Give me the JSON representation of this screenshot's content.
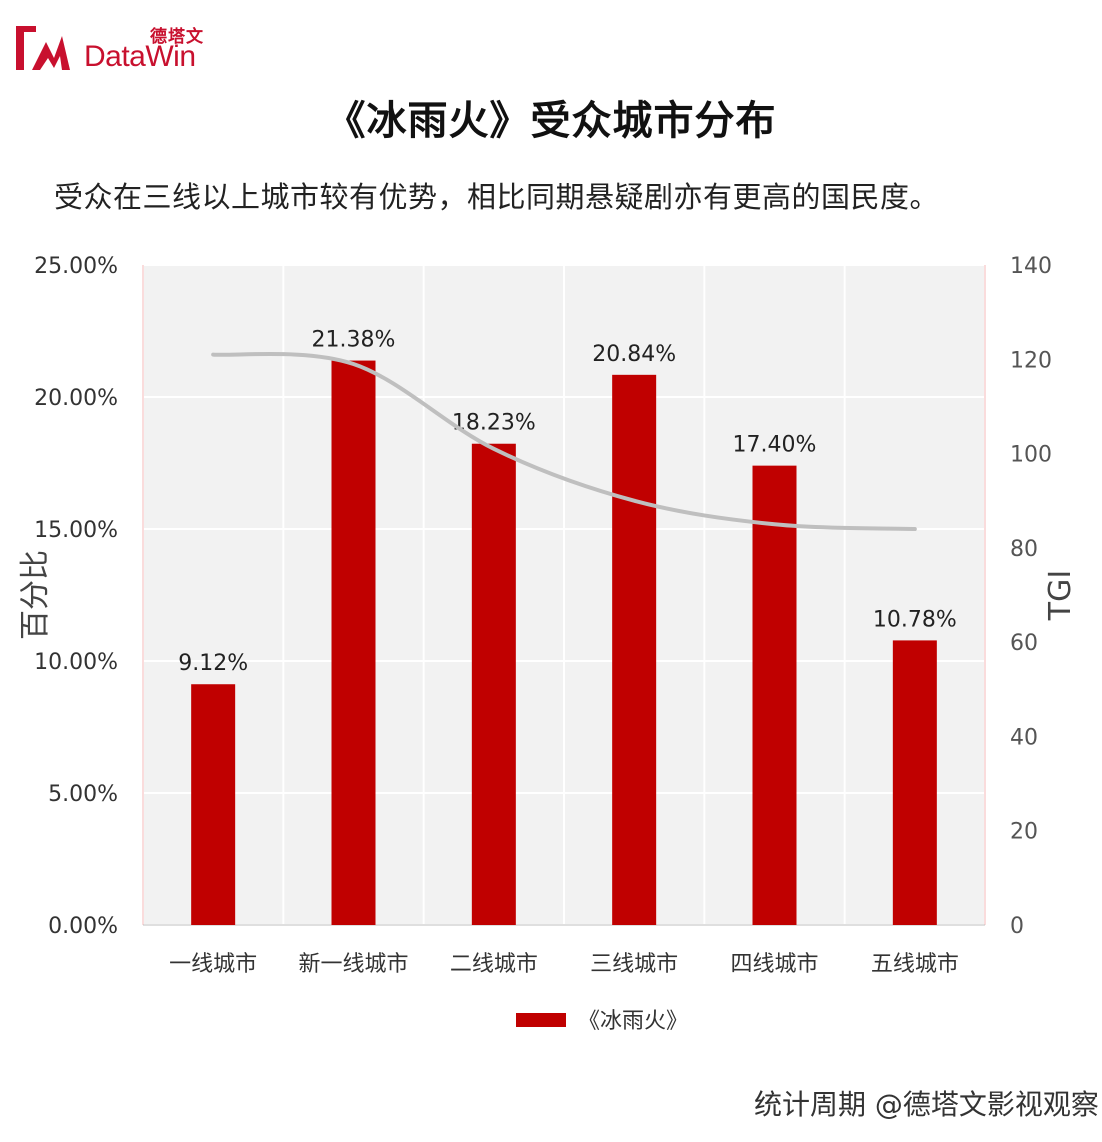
{
  "brand": {
    "name_cn": "德塔文",
    "name_en": "DataWin",
    "color": "#c8102e"
  },
  "footer": "统计周期 @德塔文影视观察",
  "chart_data": {
    "type": "bar",
    "title": "《冰雨火》受众城市分布",
    "subtitle": "受众在三线以上城市较有优势，相比同期悬疑剧亦有更高的国民度。",
    "categories": [
      "一线城市",
      "新一线城市",
      "二线城市",
      "三线城市",
      "四线城市",
      "五线城市"
    ],
    "series": [
      {
        "name": "《冰雨火》",
        "type": "bar",
        "axis": "left",
        "values": [
          9.12,
          21.38,
          18.23,
          20.84,
          17.4,
          10.78
        ],
        "labels": [
          "9.12%",
          "21.38%",
          "18.23%",
          "20.84%",
          "17.40%",
          "10.78%"
        ],
        "color": "#c00000"
      },
      {
        "type": "line",
        "axis": "right",
        "values": [
          121,
          119,
          101,
          90,
          85,
          84
        ],
        "color": "#bfbfbf"
      }
    ],
    "y_left": {
      "label": "百分比",
      "range": [
        0,
        25
      ],
      "ticks": [
        "0.00%",
        "5.00%",
        "10.00%",
        "15.00%",
        "20.00%",
        "25.00%"
      ]
    },
    "y_right": {
      "label": "TGI",
      "range": [
        0,
        140
      ],
      "ticks": [
        "0",
        "20",
        "40",
        "60",
        "80",
        "100",
        "120",
        "140"
      ]
    },
    "grid": true,
    "legend": "bottom-center"
  }
}
